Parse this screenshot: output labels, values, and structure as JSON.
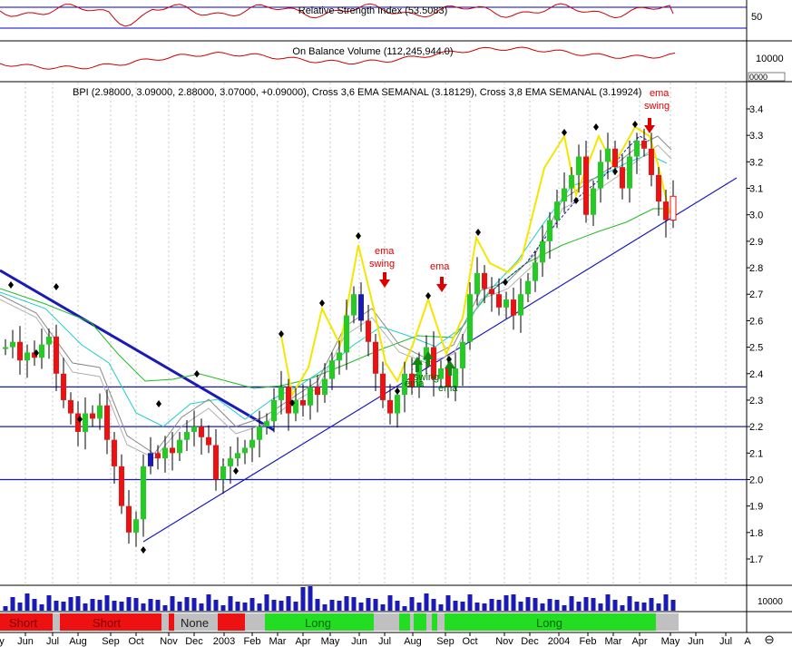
{
  "rsi_panel": {
    "title": "Relative Strength Index (53.5083)",
    "scale_labels": [
      "50"
    ]
  },
  "obv_panel": {
    "title": "On Balance Volume (112,245,944.0)",
    "scale_labels": [
      "10000",
      "0000"
    ]
  },
  "price_panel": {
    "title": "BPI (2.98000, 3.09000, 2.88000, 3.07000, +0.09000), Cross 3,6 EMA SEMANAL (3.18129), Cross 3,8 EMA SEMANAL (3.19924)",
    "y_labels": [
      "3.4",
      "3.3",
      "3.2",
      "3.1",
      "3.0",
      "2.9",
      "2.8",
      "2.7",
      "2.6",
      "2.5",
      "2.4",
      "2.3",
      "2.2",
      "2.1",
      "2.0",
      "1.9",
      "1.8",
      "1.7"
    ],
    "annotations": [
      {
        "text": "ema",
        "color": "#dd0000"
      },
      {
        "text": "swing",
        "color": "#dd0000"
      },
      {
        "text": "ema",
        "color": "#dd0000"
      },
      {
        "text": "swing",
        "color": "#006600"
      },
      {
        "text": "ema",
        "color": "#006600"
      },
      {
        "text": "swing",
        "color": "#006600"
      },
      {
        "text": "ema",
        "color": "#006600"
      },
      {
        "text": "ema",
        "color": "#dd0000"
      },
      {
        "text": "swing",
        "color": "#dd0000"
      }
    ]
  },
  "volume_panel": {
    "scale_label": "10000"
  },
  "signal_band": {
    "labels": [
      {
        "text": "Short"
      },
      {
        "text": "Short"
      },
      {
        "text": "None"
      },
      {
        "text": "Long"
      },
      {
        "text": "Long"
      }
    ],
    "colors": {
      "short": "#ee1111",
      "long": "#22dd22",
      "none": "#c0c0c0"
    }
  },
  "x_axis": {
    "labels": [
      "y",
      "Jun",
      "Jul",
      "Aug",
      "Sep",
      "Oct",
      "Nov",
      "Dec",
      "2003",
      "Feb",
      "Mar",
      "Apr",
      "May",
      "Jun",
      "Jul",
      "Aug",
      "Sep",
      "Oct",
      "Nov",
      "Dec",
      "2004",
      "Feb",
      "Mar",
      "Apr",
      "May",
      "Jun",
      "Jul",
      "A"
    ]
  },
  "chart_data": {
    "type": "candlestick",
    "title": "BPI (2.98000, 3.09000, 2.88000, 3.07000, +0.09000), Cross 3,6 EMA SEMANAL (3.18129), Cross 3,8 EMA SEMANAL (3.19924)",
    "period": "weekly",
    "ylim": [
      1.65,
      3.5
    ],
    "horizontal_levels": [
      2.35,
      2.2,
      2.0
    ],
    "last_bar": {
      "open": 2.98,
      "high": 3.09,
      "low": 2.88,
      "close": 3.07,
      "change": 0.09
    },
    "closes": [
      2.5,
      2.52,
      2.45,
      2.48,
      2.46,
      2.51,
      2.54,
      2.4,
      2.3,
      2.25,
      2.18,
      2.25,
      2.23,
      2.28,
      2.15,
      2.05,
      1.9,
      1.8,
      1.85,
      2.05,
      2.1,
      2.08,
      2.12,
      2.1,
      2.15,
      2.18,
      2.2,
      2.16,
      2.13,
      2.0,
      2.05,
      2.08,
      2.1,
      2.12,
      2.15,
      2.2,
      2.22,
      2.3,
      2.35,
      2.25,
      2.3,
      2.28,
      2.35,
      2.32,
      2.38,
      2.45,
      2.48,
      2.62,
      2.7,
      2.6,
      2.52,
      2.4,
      2.3,
      2.25,
      2.32,
      2.4,
      2.35,
      2.45,
      2.5,
      2.38,
      2.42,
      2.35,
      2.42,
      2.52,
      2.7,
      2.78,
      2.72,
      2.7,
      2.65,
      2.68,
      2.62,
      2.7,
      2.75,
      2.82,
      2.9,
      2.98,
      3.05,
      3.1,
      3.15,
      3.22,
      3.0,
      3.1,
      3.2,
      3.25,
      3.18,
      3.1,
      3.22,
      3.28,
      3.25,
      3.15,
      3.05,
      2.98,
      3.07
    ],
    "indicators": [
      {
        "name": "RSI",
        "value": 53.5083
      },
      {
        "name": "On Balance Volume",
        "value": 112245944.0
      },
      {
        "name": "Cross 3,6 EMA SEMANAL",
        "value": 3.18129
      },
      {
        "name": "Cross 3,8 EMA SEMANAL",
        "value": 3.19924
      }
    ]
  }
}
